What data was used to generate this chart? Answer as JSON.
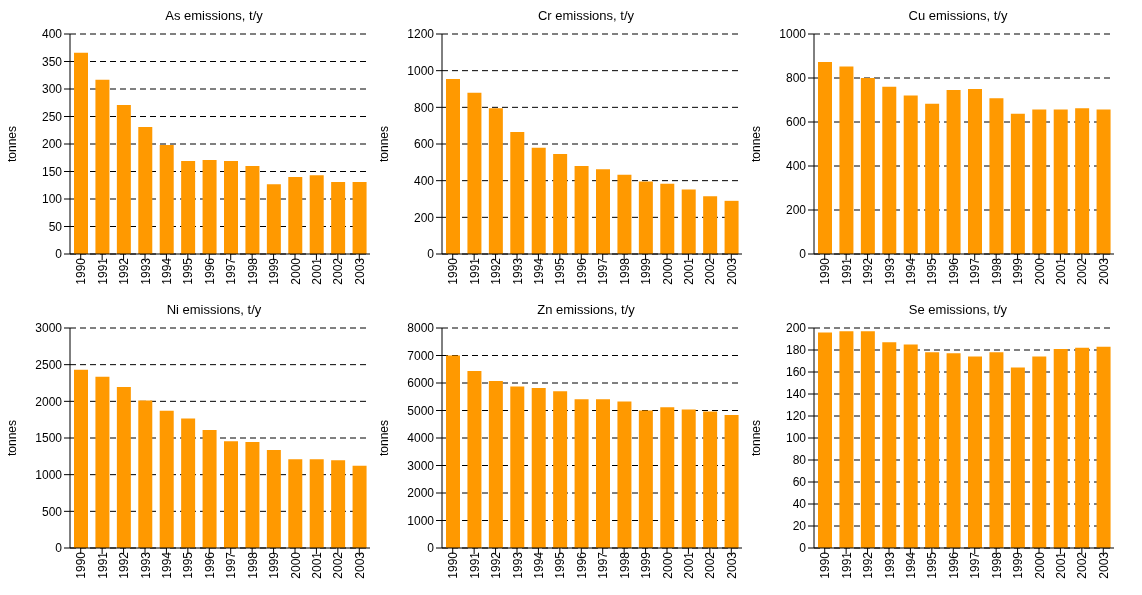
{
  "chart_data": [
    {
      "type": "bar",
      "title": "As emissions, t/y",
      "ylabel": "tonnes",
      "categories": [
        "1990",
        "1991",
        "1992",
        "1993",
        "1994",
        "1995",
        "1996",
        "1997",
        "1998",
        "1999",
        "2000",
        "2001",
        "2002",
        "2003"
      ],
      "values": [
        366,
        317,
        271,
        231,
        198,
        169,
        171,
        169,
        160,
        127,
        140,
        143,
        131,
        131
      ],
      "color": "#ff9900",
      "ylim": [
        0,
        400
      ],
      "yticks": [
        0,
        50,
        100,
        150,
        200,
        250,
        300,
        350,
        400
      ],
      "grid": "y"
    },
    {
      "type": "bar",
      "title": "Cr emissions, t/y",
      "ylabel": "tonnes",
      "categories": [
        "1990",
        "1991",
        "1992",
        "1993",
        "1994",
        "1995",
        "1996",
        "1997",
        "1998",
        "1999",
        "2000",
        "2001",
        "2002",
        "2003"
      ],
      "values": [
        955,
        880,
        795,
        665,
        580,
        545,
        480,
        462,
        432,
        395,
        383,
        352,
        315,
        290
      ],
      "color": "#ff9900",
      "ylim": [
        0,
        1200
      ],
      "yticks": [
        0,
        200,
        400,
        600,
        800,
        1000,
        1200
      ],
      "grid": "y"
    },
    {
      "type": "bar",
      "title": "Cu emissions, t/y",
      "ylabel": "tonnes",
      "categories": [
        "1990",
        "1991",
        "1992",
        "1993",
        "1994",
        "1995",
        "1996",
        "1997",
        "1998",
        "1999",
        "2000",
        "2001",
        "2002",
        "2003"
      ],
      "values": [
        873,
        852,
        800,
        760,
        720,
        683,
        745,
        750,
        708,
        637,
        657,
        657,
        662,
        657
      ],
      "color": "#ff9900",
      "ylim": [
        0,
        1000
      ],
      "yticks": [
        0,
        200,
        400,
        600,
        800,
        1000
      ],
      "grid": "y"
    },
    {
      "type": "bar",
      "title": "Ni emissions, t/y",
      "ylabel": "tonnes",
      "categories": [
        "1990",
        "1991",
        "1992",
        "1993",
        "1994",
        "1995",
        "1996",
        "1997",
        "1998",
        "1999",
        "2000",
        "2001",
        "2002",
        "2003"
      ],
      "values": [
        2430,
        2335,
        2195,
        2010,
        1870,
        1765,
        1610,
        1455,
        1445,
        1335,
        1210,
        1210,
        1195,
        1120
      ],
      "color": "#ff9900",
      "ylim": [
        0,
        3000
      ],
      "yticks": [
        0,
        500,
        1000,
        1500,
        2000,
        2500,
        3000
      ],
      "grid": "y"
    },
    {
      "type": "bar",
      "title": "Zn emissions, t/y",
      "ylabel": "tonnes",
      "categories": [
        "1990",
        "1991",
        "1992",
        "1993",
        "1994",
        "1995",
        "1996",
        "1997",
        "1998",
        "1999",
        "2000",
        "2001",
        "2002",
        "2003"
      ],
      "values": [
        7000,
        6440,
        6070,
        5870,
        5820,
        5700,
        5410,
        5410,
        5330,
        5000,
        5120,
        5040,
        4960,
        4840
      ],
      "color": "#ff9900",
      "ylim": [
        0,
        8000
      ],
      "yticks": [
        0,
        1000,
        2000,
        3000,
        4000,
        5000,
        6000,
        7000,
        8000
      ],
      "grid": "y"
    },
    {
      "type": "bar",
      "title": "Se emissions, t/y",
      "ylabel": "tonnes",
      "categories": [
        "1990",
        "1991",
        "1992",
        "1993",
        "1994",
        "1995",
        "1996",
        "1997",
        "1998",
        "1999",
        "2000",
        "2001",
        "2002",
        "2003"
      ],
      "values": [
        196,
        197,
        197,
        187,
        185,
        178,
        177,
        174,
        178,
        164,
        174,
        181,
        182,
        183
      ],
      "color": "#ff9900",
      "ylim": [
        0,
        200
      ],
      "yticks": [
        0,
        20,
        40,
        60,
        80,
        100,
        120,
        140,
        160,
        180,
        200
      ],
      "grid": "y"
    }
  ]
}
